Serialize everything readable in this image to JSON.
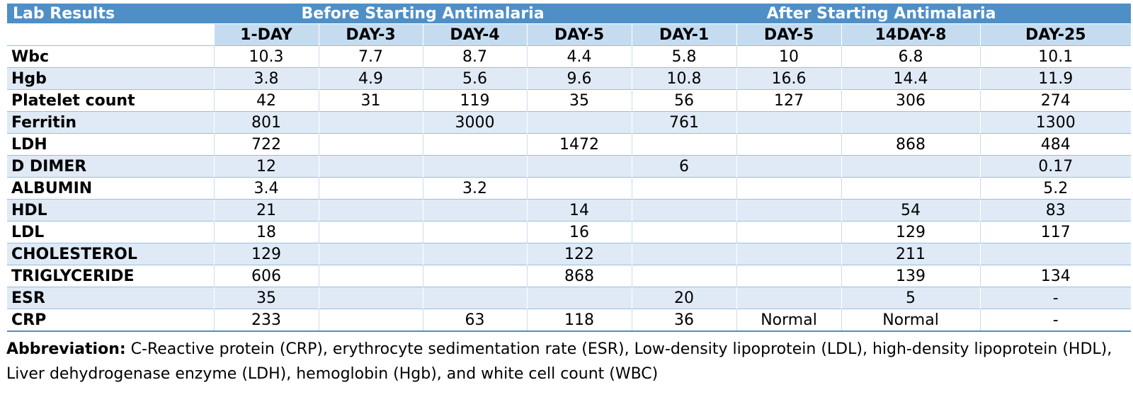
{
  "header": {
    "lab_results": "Lab Results",
    "before": "Before Starting Antimalaria",
    "after": "After Starting Antimalaria"
  },
  "days": [
    "1-DAY",
    "DAY-3",
    "DAY-4",
    "DAY-5",
    "DAY-1",
    "DAY-5",
    "14DAY-8",
    "DAY-25"
  ],
  "rows": [
    {
      "label": "Wbc",
      "values": [
        "10.3",
        "7.7",
        "8.7",
        "4.4",
        "5.8",
        "10",
        "6.8",
        "10.1"
      ]
    },
    {
      "label": "Hgb",
      "values": [
        "3.8",
        "4.9",
        "5.6",
        "9.6",
        "10.8",
        "16.6",
        "14.4",
        "11.9"
      ]
    },
    {
      "label": "Platelet count",
      "values": [
        "42",
        "31",
        "119",
        "35",
        "56",
        "127",
        "306",
        "274"
      ]
    },
    {
      "label": "Ferritin",
      "values": [
        "801",
        "",
        "3000",
        "",
        "761",
        "",
        "",
        "1300"
      ]
    },
    {
      "label": "LDH",
      "values": [
        "722",
        "",
        "",
        "1472",
        "",
        "",
        "868",
        "484"
      ]
    },
    {
      "label": "D DIMER",
      "values": [
        "12",
        "",
        "",
        "",
        "6",
        "",
        "",
        "0.17"
      ]
    },
    {
      "label": "ALBUMIN",
      "values": [
        "3.4",
        "",
        "3.2",
        "",
        "",
        "",
        "",
        "5.2"
      ]
    },
    {
      "label": "HDL",
      "values": [
        "21",
        "",
        "",
        "14",
        "",
        "",
        "54",
        "83"
      ]
    },
    {
      "label": "LDL",
      "values": [
        "18",
        "",
        "",
        "16",
        "",
        "",
        "129",
        "117"
      ]
    },
    {
      "label": "CHOLESTEROL",
      "values": [
        "129",
        "",
        "",
        "122",
        "",
        "",
        "211",
        ""
      ]
    },
    {
      "label": "TRIGLYCERIDE",
      "values": [
        "606",
        "",
        "",
        "868",
        "",
        "",
        "139",
        "134"
      ]
    },
    {
      "label": "ESR",
      "values": [
        "35",
        "",
        "",
        "",
        "20",
        "",
        "5",
        "-"
      ]
    },
    {
      "label": "CRP",
      "values": [
        "233",
        "",
        "63",
        "118",
        "36",
        "Normal",
        "Normal",
        "-"
      ]
    }
  ],
  "abbreviation": {
    "label": "Abbreviation:",
    "text": " C-Reactive protein (CRP), erythrocyte sedimentation rate (ESR), Low-density lipoprotein (LDL), high-density lipoprotein (HDL), Liver dehydrogenase enzyme (LDH), hemoglobin (Hgb), and white cell count (WBC)"
  }
}
